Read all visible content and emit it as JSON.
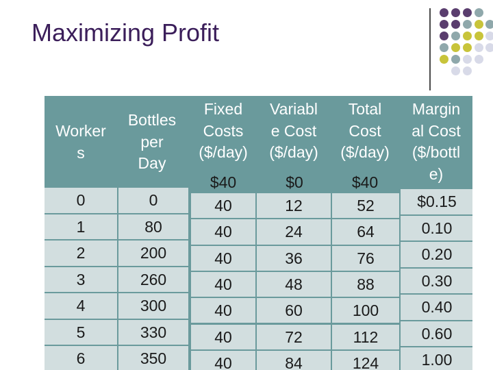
{
  "title": "Maximizing Profit",
  "colors": {
    "title": "#3b1e5a",
    "table_header_bg": "#6a9a9c",
    "table_cell_bg": "#d2dedf",
    "dot_purple": "#5a3d6e",
    "dot_gray": "#8fa8ab",
    "dot_yellow": "#c8c43a",
    "dot_light": "#d8dae8"
  },
  "decoration": {
    "dot_grid": [
      [
        "purple",
        "purple",
        "purple",
        "gray"
      ],
      [
        "purple",
        "purple",
        "gray",
        "yellow",
        "gray"
      ],
      [
        "purple",
        "gray",
        "yellow",
        "yellow",
        "light"
      ],
      [
        "gray",
        "yellow",
        "yellow",
        "light",
        "light"
      ],
      [
        "yellow",
        "gray",
        "light",
        "light"
      ],
      [
        "",
        "light",
        "light"
      ]
    ]
  },
  "table": {
    "headers": [
      "Worker\ns",
      "Bottles\nper\nDay",
      "Fixed\nCosts\n($/day)",
      "Variabl\ne Cost\n($/day)",
      "Total\nCost\n($/day)",
      "Margin\nal Cost\n($/bottl\ne)"
    ],
    "first_row_values": [
      "$40",
      "$0",
      "$40"
    ],
    "workers": [
      "0",
      "1",
      "2",
      "3",
      "4",
      "5",
      "6"
    ],
    "bottles": [
      "0",
      "80",
      "200",
      "260",
      "300",
      "330",
      "350"
    ],
    "fixed_costs": [
      "40",
      "40",
      "40",
      "40",
      "40",
      "40",
      "40"
    ],
    "variable_costs": [
      "12",
      "24",
      "36",
      "48",
      "60",
      "72",
      "84"
    ],
    "total_costs": [
      "52",
      "64",
      "76",
      "88",
      "100",
      "112",
      "124"
    ],
    "marginal_costs": [
      "$0.15",
      "0.10",
      "0.20",
      "0.30",
      "0.40",
      "0.60",
      "1.00"
    ]
  }
}
